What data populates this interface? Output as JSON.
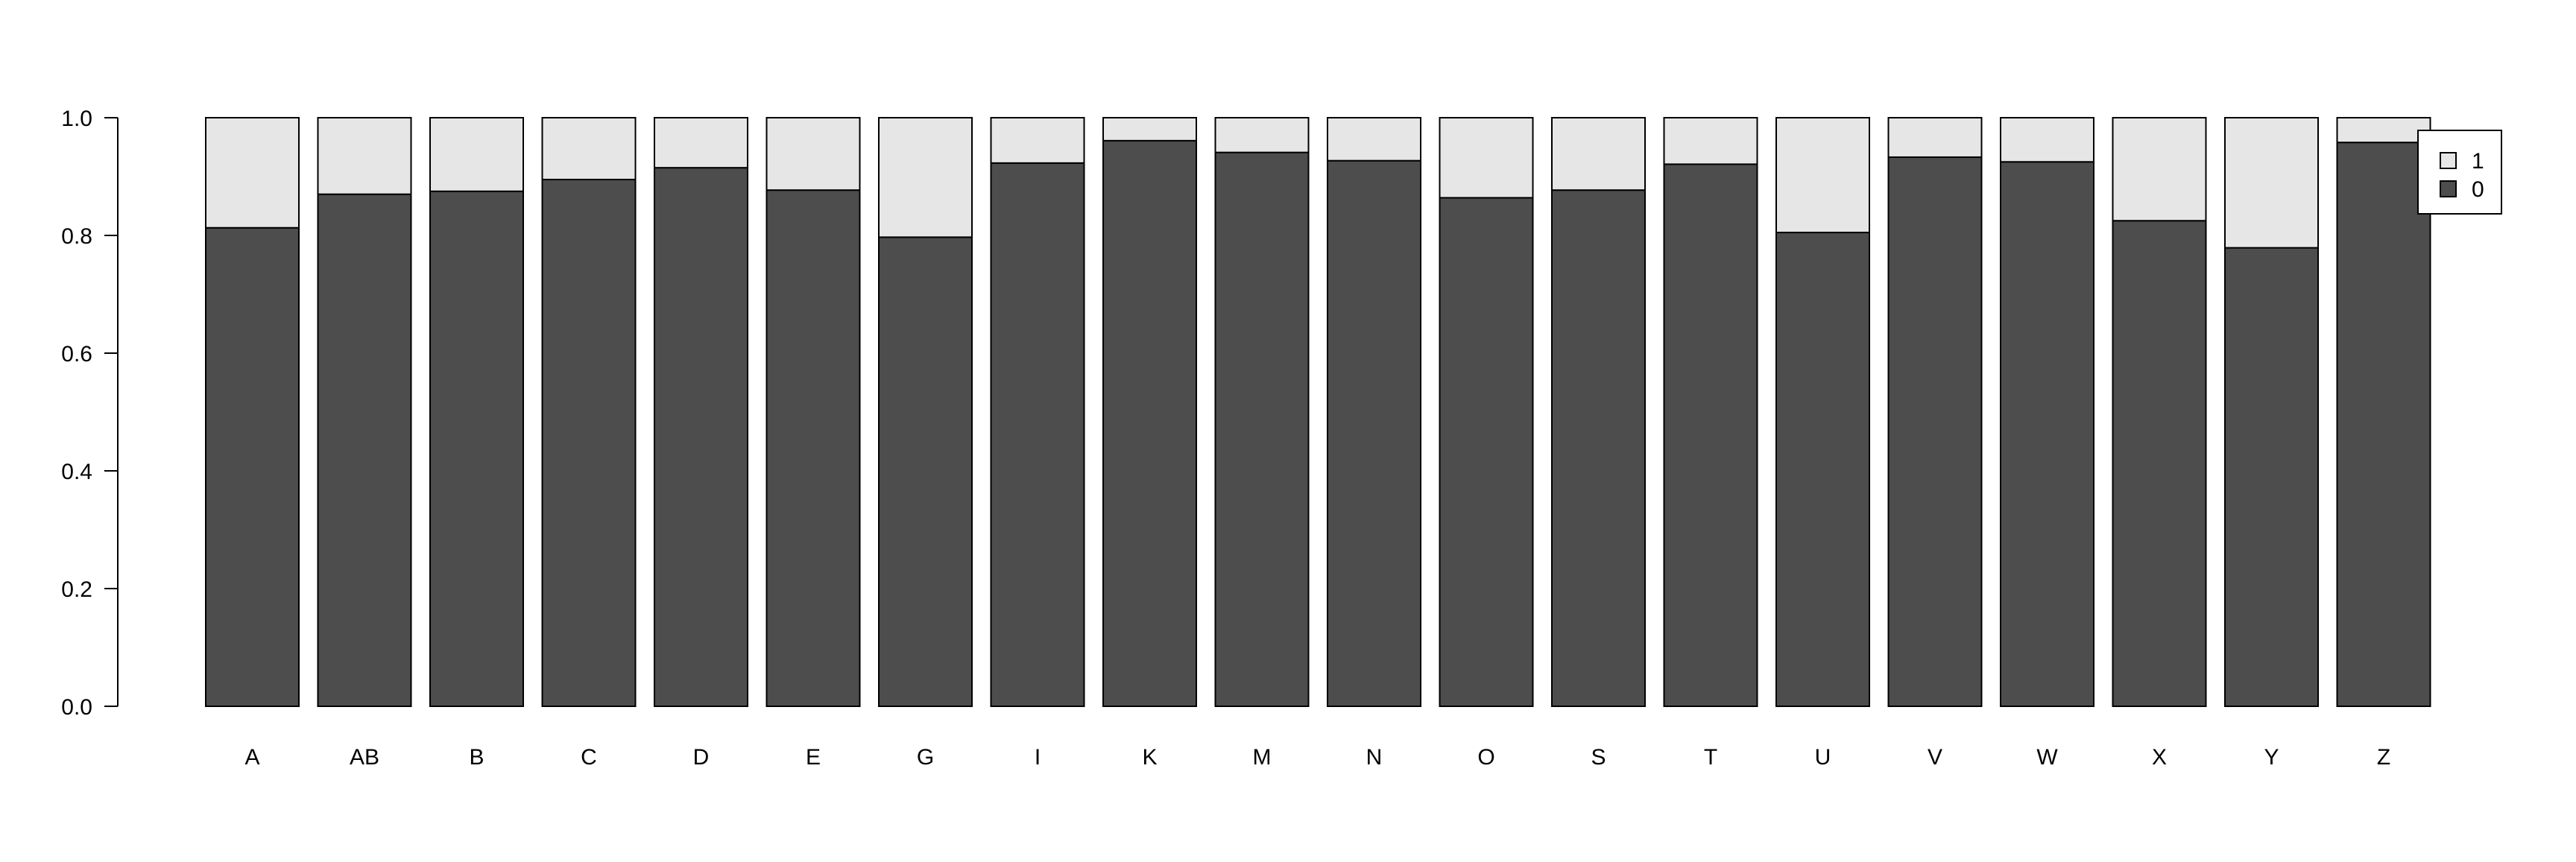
{
  "chart_data": {
    "type": "bar",
    "stacked": true,
    "categories": [
      "A",
      "AB",
      "B",
      "C",
      "D",
      "E",
      "G",
      "I",
      "K",
      "M",
      "N",
      "O",
      "S",
      "T",
      "U",
      "V",
      "W",
      "X",
      "Y",
      "Z"
    ],
    "series": [
      {
        "name": "0",
        "color": "#4d4d4d",
        "values": [
          0.813,
          0.87,
          0.875,
          0.895,
          0.915,
          0.877,
          0.797,
          0.923,
          0.961,
          0.941,
          0.927,
          0.864,
          0.877,
          0.921,
          0.805,
          0.933,
          0.925,
          0.825,
          0.779,
          0.958
        ]
      },
      {
        "name": "1",
        "color": "#e6e6e6",
        "values": [
          0.187,
          0.13,
          0.125,
          0.105,
          0.085,
          0.123,
          0.203,
          0.077,
          0.039,
          0.059,
          0.073,
          0.136,
          0.123,
          0.079,
          0.195,
          0.067,
          0.075,
          0.175,
          0.221,
          0.042
        ]
      }
    ],
    "yticks": [
      "0.0",
      "0.2",
      "0.4",
      "0.6",
      "0.8",
      "1.0"
    ],
    "ylim": [
      0,
      1
    ],
    "title": "",
    "xlabel": "",
    "ylabel": "",
    "grid": false,
    "legend": {
      "position": "top-right",
      "entries": [
        "1",
        "0"
      ]
    }
  }
}
